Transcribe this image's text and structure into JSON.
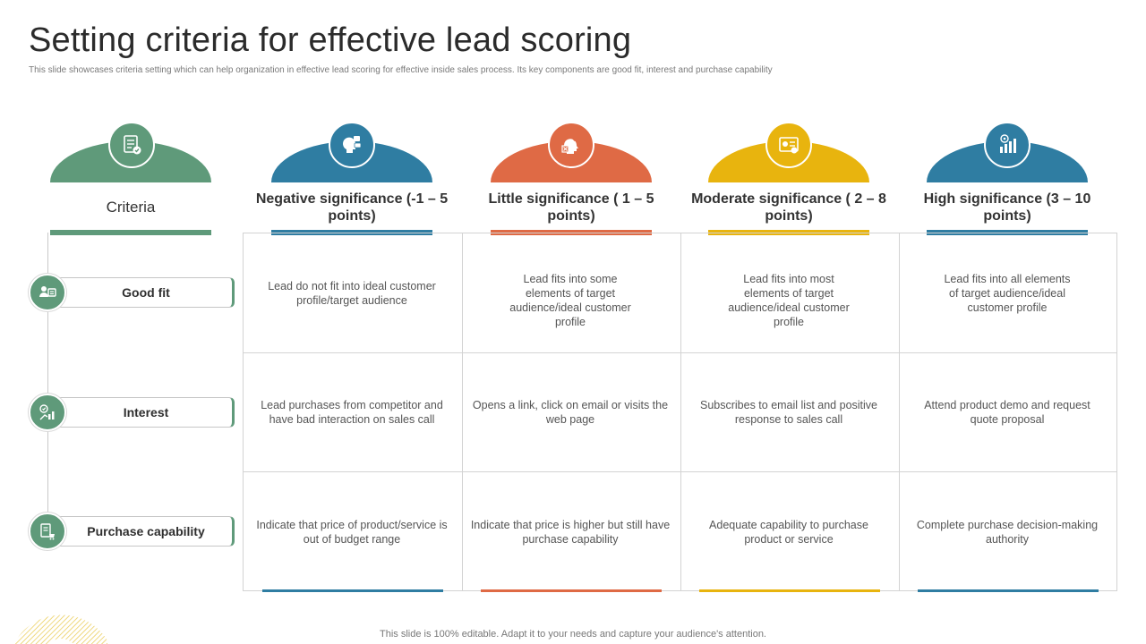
{
  "title": "Setting criteria for effective lead scoring",
  "subtitle": "This slide showcases criteria setting which can help organization in effective lead scoring for effective inside sales process. Its key components are good fit, interest and purchase capability",
  "footer": "This slide is 100% editable. Adapt it to your needs and capture your audience's attention.",
  "colors": {
    "green": "#5f9a7a",
    "blue": "#2f7da2",
    "orange": "#df6a45",
    "yellow": "#e8b40e",
    "blue_dark": "#2f7da2"
  },
  "criteria_header": {
    "label": "Criteria",
    "icon": "checklist-icon"
  },
  "columns": [
    {
      "label": "Negative significance (-1 – 5 points)",
      "icon": "head-gear-icon"
    },
    {
      "label": "Little significance ( 1 – 5 points)",
      "icon": "head-check-icon"
    },
    {
      "label": "Moderate significance ( 2 – 8 points)",
      "icon": "dashboard-icon"
    },
    {
      "label": "High significance (3 – 10 points)",
      "icon": "target-chart-icon"
    }
  ],
  "rows": [
    {
      "label": "Good fit",
      "icon": "user-group-icon",
      "cells": [
        "Lead do not fit into ideal customer profile/target audience",
        "Lead fits into some elements of target audience/ideal customer profile",
        "Lead fits into most elements of target audience/ideal customer profile",
        "Lead fits into all elements of target audience/ideal customer profile"
      ]
    },
    {
      "label": "Interest",
      "icon": "growth-icon",
      "cells": [
        "Lead purchases from competitor and have bad interaction on sales call",
        "Opens a link, click on email or visits the web page",
        "Subscribes to email list and positive response to sales call",
        "Attend product demo and request quote proposal"
      ]
    },
    {
      "label": "Purchase capability",
      "icon": "purchase-icon",
      "cells": [
        "Indicate that price of product/service is out of budget range",
        "Indicate that price is higher but still have purchase capability",
        "Adequate capability to purchase product or service",
        "Complete purchase decision-making authority"
      ]
    }
  ]
}
